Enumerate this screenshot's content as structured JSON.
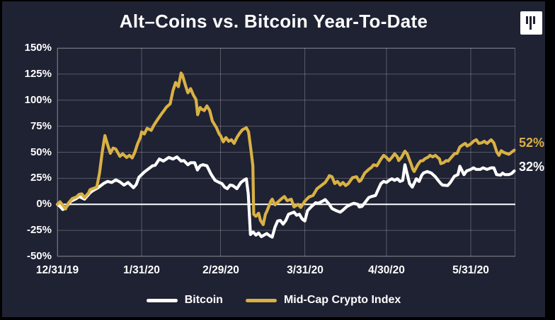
{
  "title": "Alt–Coins vs. Bitcoin Year-To-Date",
  "logo_icon": "three-vertical-bars",
  "colors": {
    "outer_background": "#000000",
    "card_background": "#1f2233",
    "grid": "rgba(255,255,255,0.25)",
    "zero_line": "#ffffff",
    "bitcoin": "#ffffff",
    "midcap": "#d9b144",
    "text": "#ffffff"
  },
  "end_labels": [
    {
      "text": "52%",
      "color": "#d9b144"
    },
    {
      "text": "32%",
      "color": "#ffffff"
    }
  ],
  "legend": {
    "items": [
      {
        "label": "Bitcoin",
        "color": "#ffffff"
      },
      {
        "label": "Mid-Cap Crypto Index",
        "color": "#d9b144"
      }
    ]
  },
  "chart_data": {
    "type": "line",
    "title": "Alt–Coins vs. Bitcoin Year-To-Date",
    "grid": true,
    "legend_position": "bottom",
    "x_axis": {
      "unit": "days-since-12/31/19",
      "tick_labels": [
        "12/31/19",
        "1/31/20",
        "2/29/20",
        "3/31/20",
        "4/30/20",
        "5/31/20"
      ],
      "tick_days": [
        0,
        31,
        60,
        91,
        121,
        152
      ],
      "domain_days": [
        0,
        168.4
      ]
    },
    "y_axis": {
      "tick_labels": [
        "150%",
        "125%",
        "100%",
        "75%",
        "50%",
        "25%",
        "0%",
        "-25%",
        "-50%"
      ],
      "ticks": [
        150,
        125,
        100,
        75,
        50,
        25,
        0,
        -25,
        -50
      ],
      "range": [
        -50,
        150
      ],
      "unit": "percent"
    },
    "series": [
      {
        "name": "Bitcoin",
        "color": "#ffffff",
        "end_label": "32%",
        "points": [
          [
            0,
            0
          ],
          [
            1,
            -2
          ],
          [
            2,
            -5
          ],
          [
            3,
            -3.5
          ],
          [
            5,
            3
          ],
          [
            7,
            5.5
          ],
          [
            8,
            7.5
          ],
          [
            10,
            5
          ],
          [
            12,
            11
          ],
          [
            13,
            13
          ],
          [
            15,
            16
          ],
          [
            17,
            20
          ],
          [
            18.5,
            22
          ],
          [
            20,
            21
          ],
          [
            21.5,
            23.5
          ],
          [
            23,
            21.5
          ],
          [
            24.5,
            18.5
          ],
          [
            26,
            21
          ],
          [
            28,
            16
          ],
          [
            29,
            19
          ],
          [
            30,
            26
          ],
          [
            32,
            31
          ],
          [
            35,
            37
          ],
          [
            36,
            37.5
          ],
          [
            37.5,
            43.5
          ],
          [
            39,
            41.5
          ],
          [
            41,
            45
          ],
          [
            42.5,
            43.5
          ],
          [
            44,
            45.5
          ],
          [
            45.5,
            41.5
          ],
          [
            46.5,
            42
          ],
          [
            48,
            38
          ],
          [
            49,
            40
          ],
          [
            50.5,
            40
          ],
          [
            51.5,
            33
          ],
          [
            52.5,
            37
          ],
          [
            53.5,
            38
          ],
          [
            55,
            37
          ],
          [
            56.5,
            29
          ],
          [
            58,
            23
          ],
          [
            59.5,
            21
          ],
          [
            60.5,
            20
          ],
          [
            61.5,
            16.5
          ],
          [
            62.5,
            15
          ],
          [
            63.5,
            18.5
          ],
          [
            64.5,
            18
          ],
          [
            66,
            15
          ],
          [
            67.5,
            21
          ],
          [
            68.5,
            23
          ],
          [
            69.5,
            24.5
          ],
          [
            70.2,
            10
          ],
          [
            71,
            -29
          ],
          [
            72,
            -26.5
          ],
          [
            73,
            -29.5
          ],
          [
            74,
            -27.5
          ],
          [
            75,
            -31
          ],
          [
            76,
            -29.5
          ],
          [
            77,
            -28
          ],
          [
            78,
            -30
          ],
          [
            79,
            -31.5
          ],
          [
            80,
            -22
          ],
          [
            81,
            -16
          ],
          [
            82,
            -15.5
          ],
          [
            83,
            -19
          ],
          [
            84,
            -15.5
          ],
          [
            85,
            -9.5
          ],
          [
            86,
            -8.5
          ],
          [
            87,
            -7.5
          ],
          [
            88,
            -10.5
          ],
          [
            89,
            -9.5
          ],
          [
            90,
            -14
          ],
          [
            91,
            -16
          ],
          [
            92,
            -6
          ],
          [
            93.5,
            -2
          ],
          [
            95,
            1.5
          ],
          [
            96,
            1
          ],
          [
            97.5,
            3
          ],
          [
            98.5,
            4.5
          ],
          [
            100,
            0
          ],
          [
            101,
            -4
          ],
          [
            102.5,
            -6
          ],
          [
            104,
            -7.5
          ],
          [
            105,
            -5.5
          ],
          [
            106.5,
            -2
          ],
          [
            108,
            0
          ],
          [
            109,
            1
          ],
          [
            110.5,
            0
          ],
          [
            111,
            -2.5
          ],
          [
            112,
            -2
          ],
          [
            113.5,
            3
          ],
          [
            114.5,
            6.5
          ],
          [
            115.5,
            7.5
          ],
          [
            117,
            8.5
          ],
          [
            118,
            14.5
          ],
          [
            119,
            20
          ],
          [
            120,
            22
          ],
          [
            121,
            21
          ],
          [
            122,
            23
          ],
          [
            123,
            24.5
          ],
          [
            124,
            23
          ],
          [
            125,
            24.5
          ],
          [
            126,
            22
          ],
          [
            127,
            23
          ],
          [
            127.8,
            38
          ],
          [
            129.5,
            20
          ],
          [
            130.5,
            16.5
          ],
          [
            132,
            24.5
          ],
          [
            133,
            22
          ],
          [
            134,
            28
          ],
          [
            134.6,
            30
          ],
          [
            136,
            31.5
          ],
          [
            137.5,
            30
          ],
          [
            139,
            26.5
          ],
          [
            140,
            23
          ],
          [
            141,
            20
          ],
          [
            141.6,
            18.5
          ],
          [
            143.5,
            18
          ],
          [
            144.5,
            21
          ],
          [
            146,
            27
          ],
          [
            147.3,
            28.5
          ],
          [
            148,
            36.5
          ],
          [
            149.5,
            28.5
          ],
          [
            150.5,
            32
          ],
          [
            152,
            33.5
          ],
          [
            153,
            35
          ],
          [
            154,
            33.5
          ],
          [
            155.5,
            33.5
          ],
          [
            156.5,
            35
          ],
          [
            158,
            33.5
          ],
          [
            159.5,
            35
          ],
          [
            160.5,
            35
          ],
          [
            161.5,
            28.5
          ],
          [
            163,
            28
          ],
          [
            163.7,
            30
          ],
          [
            164.5,
            28.5
          ],
          [
            166,
            28.5
          ],
          [
            167,
            29.5
          ],
          [
            168,
            32
          ]
        ]
      },
      {
        "name": "Mid-Cap Crypto Index",
        "color": "#d9b144",
        "end_label": "52%",
        "points": [
          [
            0,
            0
          ],
          [
            1,
            2.5
          ],
          [
            2,
            -1
          ],
          [
            3,
            -4.5
          ],
          [
            4,
            1
          ],
          [
            5.5,
            5.5
          ],
          [
            7,
            7
          ],
          [
            8,
            9.5
          ],
          [
            9,
            10
          ],
          [
            10,
            6.5
          ],
          [
            11.5,
            11
          ],
          [
            12,
            14
          ],
          [
            13,
            15
          ],
          [
            14.5,
            16.5
          ],
          [
            15.5,
            30
          ],
          [
            16.5,
            50
          ],
          [
            17.5,
            66
          ],
          [
            18.5,
            57
          ],
          [
            19.5,
            49
          ],
          [
            20.5,
            54
          ],
          [
            21.5,
            53
          ],
          [
            23,
            46
          ],
          [
            24,
            48.5
          ],
          [
            25.5,
            45
          ],
          [
            26.5,
            47
          ],
          [
            27.5,
            44.5
          ],
          [
            28.5,
            50
          ],
          [
            29.5,
            58
          ],
          [
            30.5,
            64
          ],
          [
            31,
            69.5
          ],
          [
            32,
            67.5
          ],
          [
            33,
            73
          ],
          [
            34.5,
            71
          ],
          [
            35.5,
            76
          ],
          [
            37,
            82
          ],
          [
            38.5,
            87.5
          ],
          [
            39.5,
            91
          ],
          [
            40,
            93
          ],
          [
            41.5,
            96.5
          ],
          [
            42.5,
            109
          ],
          [
            43.5,
            117
          ],
          [
            44.5,
            113
          ],
          [
            45.5,
            126
          ],
          [
            46,
            124
          ],
          [
            47,
            115
          ],
          [
            48,
            107
          ],
          [
            49,
            111
          ],
          [
            50,
            105
          ],
          [
            51,
            100.5
          ],
          [
            51.6,
            86
          ],
          [
            52.5,
            93
          ],
          [
            53,
            91.5
          ],
          [
            54,
            90
          ],
          [
            55,
            94.5
          ],
          [
            56,
            90
          ],
          [
            57,
            80
          ],
          [
            58.5,
            73.5
          ],
          [
            59.5,
            67.5
          ],
          [
            60,
            66
          ],
          [
            61,
            60
          ],
          [
            62,
            64
          ],
          [
            63,
            60.5
          ],
          [
            64,
            62
          ],
          [
            65,
            58.5
          ],
          [
            66,
            64
          ],
          [
            67,
            68
          ],
          [
            68,
            71.5
          ],
          [
            69.5,
            73.5
          ],
          [
            70.3,
            69.5
          ],
          [
            71.3,
            50
          ],
          [
            71.9,
            37
          ],
          [
            72.2,
            -9.5
          ],
          [
            73,
            -11.5
          ],
          [
            74,
            -8.5
          ],
          [
            74.7,
            -15.5
          ],
          [
            75.7,
            -19.5
          ],
          [
            76.5,
            -9.5
          ],
          [
            77,
            -7
          ],
          [
            78.5,
            3
          ],
          [
            79,
            5
          ],
          [
            80,
            -0.5
          ],
          [
            81,
            2
          ],
          [
            82.5,
            5.5
          ],
          [
            83.5,
            7.5
          ],
          [
            84.5,
            3.5
          ],
          [
            86,
            5
          ],
          [
            87,
            -2.5
          ],
          [
            88.5,
            0
          ],
          [
            89.5,
            -3
          ],
          [
            91,
            3
          ],
          [
            92.5,
            7
          ],
          [
            94,
            8.5
          ],
          [
            95.5,
            15
          ],
          [
            97,
            18
          ],
          [
            98.5,
            21
          ],
          [
            99.5,
            25
          ],
          [
            100,
            27.5
          ],
          [
            101,
            26.5
          ],
          [
            102,
            20
          ],
          [
            103,
            22
          ],
          [
            104,
            18.5
          ],
          [
            105,
            21
          ],
          [
            106,
            18
          ],
          [
            107,
            20
          ],
          [
            108.5,
            25.5
          ],
          [
            110,
            26.5
          ],
          [
            111,
            22
          ],
          [
            111.6,
            23
          ],
          [
            113,
            30
          ],
          [
            114.5,
            33.5
          ],
          [
            115.5,
            35.5
          ],
          [
            116.3,
            38
          ],
          [
            117.5,
            37
          ],
          [
            119,
            43.5
          ],
          [
            120,
            47
          ],
          [
            121,
            45
          ],
          [
            122,
            42
          ],
          [
            123,
            45
          ],
          [
            124,
            48.5
          ],
          [
            125,
            45.5
          ],
          [
            125.5,
            42
          ],
          [
            126.5,
            45
          ],
          [
            127.8,
            51
          ],
          [
            128.6,
            48.5
          ],
          [
            130,
            39
          ],
          [
            130.7,
            33.5
          ],
          [
            131.2,
            31.5
          ],
          [
            132.5,
            38
          ],
          [
            133.5,
            41.5
          ],
          [
            134.5,
            42
          ],
          [
            135,
            43.5
          ],
          [
            136.5,
            45.5
          ],
          [
            137,
            47
          ],
          [
            138,
            45.5
          ],
          [
            139,
            47
          ],
          [
            140.5,
            43.5
          ],
          [
            141,
            39
          ],
          [
            142,
            40
          ],
          [
            143,
            42
          ],
          [
            143.7,
            41.5
          ],
          [
            145,
            45.5
          ],
          [
            146,
            48.5
          ],
          [
            147,
            49
          ],
          [
            148,
            55
          ],
          [
            149,
            57
          ],
          [
            150,
            58.5
          ],
          [
            150.7,
            56
          ],
          [
            152,
            58
          ],
          [
            153,
            60.5
          ],
          [
            154,
            62
          ],
          [
            155,
            58.5
          ],
          [
            156,
            59
          ],
          [
            157,
            60.5
          ],
          [
            158,
            58.5
          ],
          [
            159.5,
            62
          ],
          [
            160.5,
            59
          ],
          [
            161.6,
            50
          ],
          [
            162.4,
            47
          ],
          [
            163.2,
            51.5
          ],
          [
            164,
            50
          ],
          [
            165,
            49
          ],
          [
            166,
            48
          ],
          [
            167,
            50
          ],
          [
            168,
            52
          ]
        ]
      }
    ]
  }
}
